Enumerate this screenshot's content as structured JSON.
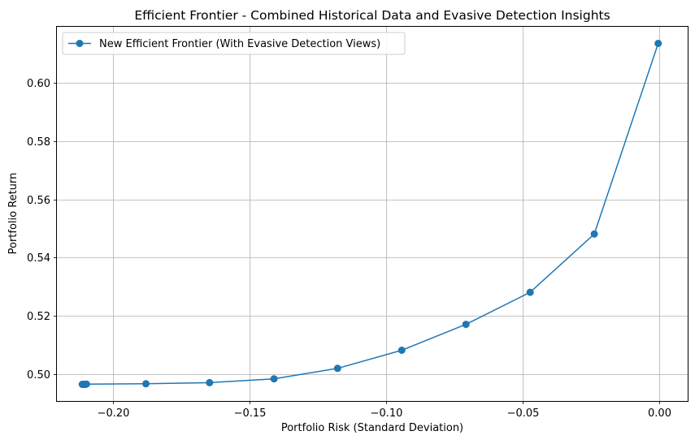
{
  "chart_data": {
    "type": "line",
    "title": "Efficient Frontier - Combined Historical Data and Evasive Detection Insights",
    "xlabel": "Portfolio Risk (Standard Deviation)",
    "ylabel": "Portfolio Return",
    "xlim": [
      -0.2205,
      0.0105
    ],
    "ylim": [
      0.4908,
      0.6192
    ],
    "x_ticks": [
      -0.2,
      -0.15,
      -0.1,
      -0.05,
      0.0
    ],
    "x_tick_labels": [
      "−0.20",
      "−0.15",
      "−0.10",
      "−0.05",
      "0.00"
    ],
    "y_ticks": [
      0.5,
      0.52,
      0.54,
      0.56,
      0.58,
      0.6
    ],
    "y_tick_labels": [
      "0.50",
      "0.52",
      "0.54",
      "0.56",
      "0.58",
      "0.60"
    ],
    "grid": true,
    "legend_position": "top-left",
    "series": [
      {
        "name": "New Efficient Frontier (With Evasive Detection Views)",
        "color": "#1f77b4",
        "marker": "circle",
        "x": [
          -0.2112,
          -0.2109,
          -0.2106,
          -0.2103,
          -0.21,
          -0.2097,
          -0.1879,
          -0.1646,
          -0.141,
          -0.1177,
          -0.0942,
          -0.0707,
          -0.0472,
          -0.0237,
          -0.0003
        ],
        "y": [
          0.4965,
          0.4965,
          0.4965,
          0.4965,
          0.4965,
          0.4966,
          0.4967,
          0.4971,
          0.4984,
          0.502,
          0.5082,
          0.5171,
          0.5281,
          0.5481,
          0.6135
        ]
      }
    ]
  }
}
